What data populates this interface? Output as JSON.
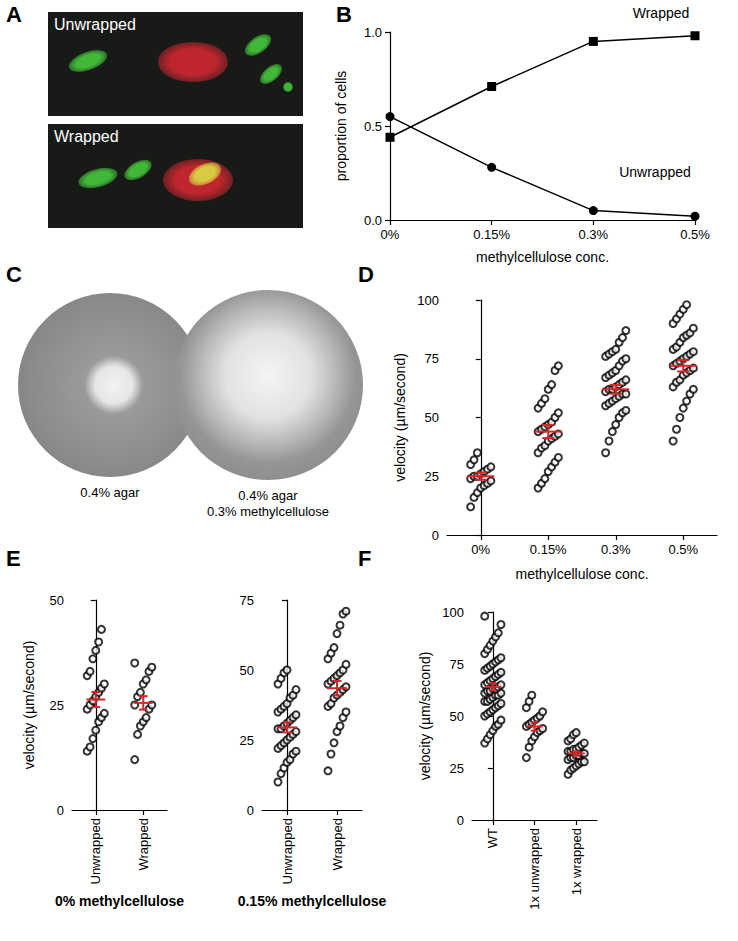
{
  "images": [
    {
      "panel": "A",
      "captions": [
        [
          "Unwrapped"
        ],
        [
          "Wrapped"
        ]
      ]
    },
    {
      "panel": "C",
      "captions": [
        [
          "0.4% agar"
        ],
        [
          "0.4% agar",
          "0.3% methylcellulose"
        ]
      ]
    }
  ],
  "chart_data": [
    {
      "panel": "B",
      "type": "line",
      "categories": [
        "0%",
        "0.15%",
        "0.3%",
        "0.5%"
      ],
      "xlabel": "methylcellulose conc.",
      "ylabel": "proportion of cells",
      "ylim": [
        0,
        1
      ],
      "yticks": [
        {
          "value": 0,
          "label": "0.0"
        },
        {
          "value": 0.5,
          "label": "0.5"
        },
        {
          "value": 1,
          "label": "1.0"
        }
      ],
      "series": [
        {
          "name": "Wrapped",
          "color": "#000000",
          "marker": "square",
          "values": [
            0.44,
            0.71,
            0.95,
            0.98
          ]
        },
        {
          "name": "Unwrapped",
          "color": "#000000",
          "marker": "circle",
          "values": [
            0.55,
            0.28,
            0.05,
            0.02
          ]
        }
      ]
    },
    {
      "panel": "D",
      "type": "scatter",
      "categories": [
        "0%",
        "0.15%",
        "0.3%",
        "0.5%"
      ],
      "xlabel": "methylcellulose conc.",
      "ylabel": "velocity (µm/second)",
      "ylim": [
        0,
        100
      ],
      "yticks": [
        0,
        25,
        50,
        75,
        100
      ],
      "series": [
        {
          "type": "scatter",
          "color": "#000000",
          "marker": "open_circle",
          "values": [
            [
              12,
              16,
              18,
              20,
              21,
              22,
              23,
              24,
              25,
              25,
              26,
              27,
              28,
              29,
              30,
              32,
              35
            ],
            [
              20,
              22,
              24,
              27,
              29,
              31,
              33,
              35,
              37,
              38,
              40,
              41,
              42,
              43,
              44,
              45,
              46,
              47,
              48,
              50,
              52,
              54,
              56,
              58,
              62,
              64,
              70,
              72
            ],
            [
              35,
              40,
              44,
              47,
              50,
              52,
              53,
              55,
              56,
              57,
              58,
              59,
              60,
              60,
              61,
              62,
              62,
              63,
              64,
              65,
              66,
              67,
              68,
              69,
              70,
              72,
              74,
              75,
              76,
              77,
              78,
              79,
              82,
              84,
              87
            ],
            [
              40,
              45,
              50,
              54,
              57,
              60,
              62,
              63,
              65,
              66,
              68,
              69,
              70,
              71,
              72,
              73,
              74,
              75,
              76,
              77,
              78,
              79,
              80,
              82,
              84,
              85,
              86,
              88,
              90,
              92,
              94,
              96,
              98
            ]
          ]
        },
        {
          "type": "errorbar",
          "color": "#d62728",
          "values": [
            25,
            44,
            62,
            72
          ],
          "errors": [
            1.5,
            2.8,
            1.9,
            2.4
          ]
        }
      ]
    },
    {
      "panel": "E",
      "type": "scatter",
      "categories": [
        "Unwrapped",
        "Wrapped"
      ],
      "title": "0% methylcellulose",
      "ylabel": "velocity (µm/second)",
      "ylim": [
        0,
        50
      ],
      "yticks": [
        0,
        25,
        50
      ],
      "series": [
        {
          "type": "scatter",
          "color": "#000000",
          "marker": "open_circle",
          "values": [
            [
              14,
              15,
              17,
              19,
              21,
              22,
              23,
              24,
              25,
              26,
              27,
              28,
              29,
              30,
              32,
              33,
              36,
              38,
              40,
              43
            ],
            [
              12,
              18,
              20,
              21,
              22,
              24,
              25,
              25,
              27,
              28,
              30,
              31,
              33,
              34,
              35
            ]
          ]
        },
        {
          "type": "errorbar",
          "color": "#d62728",
          "values": [
            26.3,
            25.5
          ],
          "errors": [
            1.8,
            1.6
          ]
        }
      ]
    },
    {
      "panel": "E",
      "type": "scatter",
      "categories": [
        "Unwrapped",
        "Wrapped"
      ],
      "title": "0.15% methylcellulose",
      "ylim": [
        0,
        75
      ],
      "yticks": [
        0,
        25,
        50,
        75
      ],
      "series": [
        {
          "type": "scatter",
          "color": "#000000",
          "marker": "open_circle",
          "values": [
            [
              10,
              13,
              15,
              17,
              18,
              20,
              21,
              22,
              23,
              24,
              25,
              26,
              27,
              28,
              29,
              29,
              30,
              31,
              32,
              33,
              34,
              35,
              36,
              37,
              38,
              40,
              41,
              43,
              45,
              47,
              49,
              50
            ],
            [
              14,
              20,
              24,
              28,
              30,
              33,
              35,
              37,
              38,
              40,
              41,
              42,
              43,
              44,
              45,
              46,
              47,
              48,
              49,
              50,
              52,
              54,
              56,
              58,
              63,
              66,
              70,
              71
            ]
          ]
        },
        {
          "type": "errorbar",
          "color": "#d62728",
          "values": [
            29.5,
            43.5
          ],
          "errors": [
            1.8,
            2.6
          ]
        }
      ]
    },
    {
      "panel": "F",
      "type": "scatter",
      "categories": [
        "WT",
        "1x unwrapped",
        "1x wrapped"
      ],
      "ylabel": "velocity (µm/second)",
      "ylim": [
        0,
        100
      ],
      "yticks": [
        0,
        25,
        50,
        75,
        100
      ],
      "series": [
        {
          "type": "scatter",
          "color": "#000000",
          "marker": "open_circle",
          "values": [
            [
              37,
              39,
              41,
              43,
              45,
              46,
              48,
              50,
              51,
              52,
              53,
              54,
              55,
              56,
              57,
              57,
              58,
              59,
              60,
              60,
              61,
              61,
              62,
              62,
              63,
              63,
              64,
              65,
              65,
              66,
              67,
              68,
              69,
              70,
              71,
              72,
              73,
              74,
              75,
              76,
              77,
              78,
              80,
              82,
              84,
              86,
              88,
              90,
              94,
              98
            ],
            [
              30,
              35,
              38,
              40,
              42,
              43,
              44,
              45,
              46,
              47,
              48,
              49,
              50,
              52,
              54,
              57,
              60
            ],
            [
              22,
              24,
              25,
              26,
              27,
              28,
              28,
              29,
              30,
              30,
              31,
              31,
              32,
              32,
              33,
              33,
              34,
              34,
              35,
              36,
              37,
              38,
              39,
              41,
              42
            ]
          ]
        },
        {
          "type": "errorbar",
          "color": "#d62728",
          "values": [
            64,
            45,
            32
          ],
          "errors": [
            1.7,
            2.0,
            1.0
          ]
        }
      ]
    }
  ]
}
